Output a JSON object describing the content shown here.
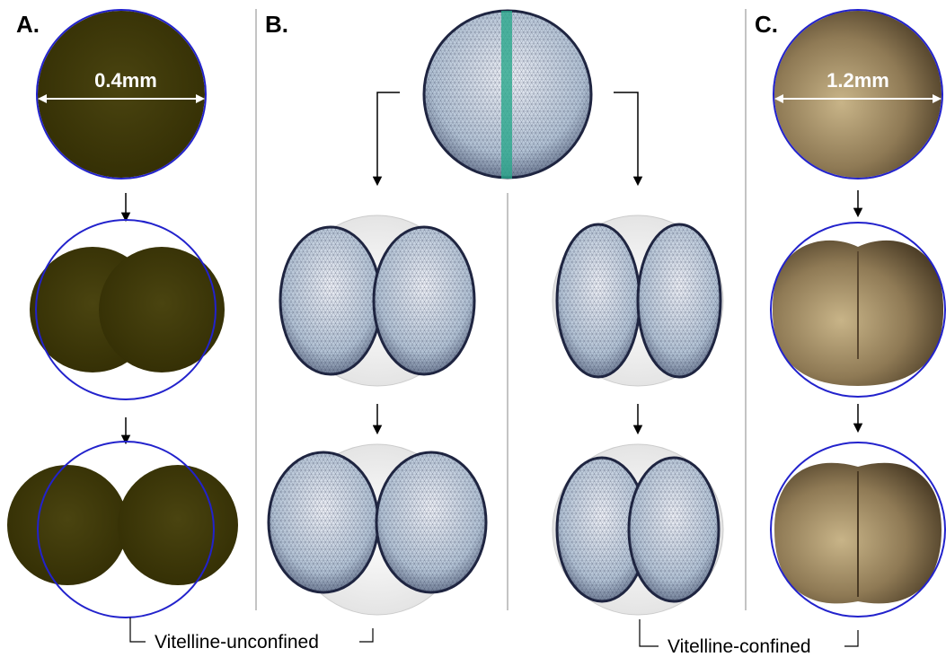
{
  "panels": [
    {
      "label": "A.",
      "scale": "0.4mm"
    },
    {
      "label": "B."
    },
    {
      "label": "C.",
      "scale": "1.2mm"
    }
  ],
  "captions": [
    "Vitelline-unconfined",
    "Vitelline-confined"
  ]
}
